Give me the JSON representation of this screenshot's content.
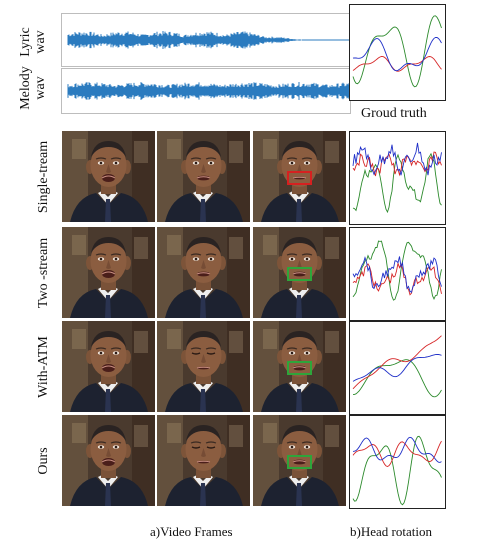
{
  "labels": {
    "lyric": "Lyric\nwav",
    "melody": "Melody\nwav",
    "ground_truth": "Groud truth",
    "rows": [
      "Single-tream",
      "Two -stream",
      "With-ATM",
      "Ours"
    ],
    "caption_frames": "a)Video Frames",
    "caption_rotation": "b)Head rotation"
  },
  "colors": {
    "waveform": "#2b7bbf",
    "roll": "#2c8a2c",
    "pitch": "#d62728",
    "yaw": "#2030c8",
    "box_bad": "#d62020",
    "box_good": "#2ea53a"
  },
  "mouth_boxes": [
    "red",
    "green",
    "green",
    "green"
  ]
}
